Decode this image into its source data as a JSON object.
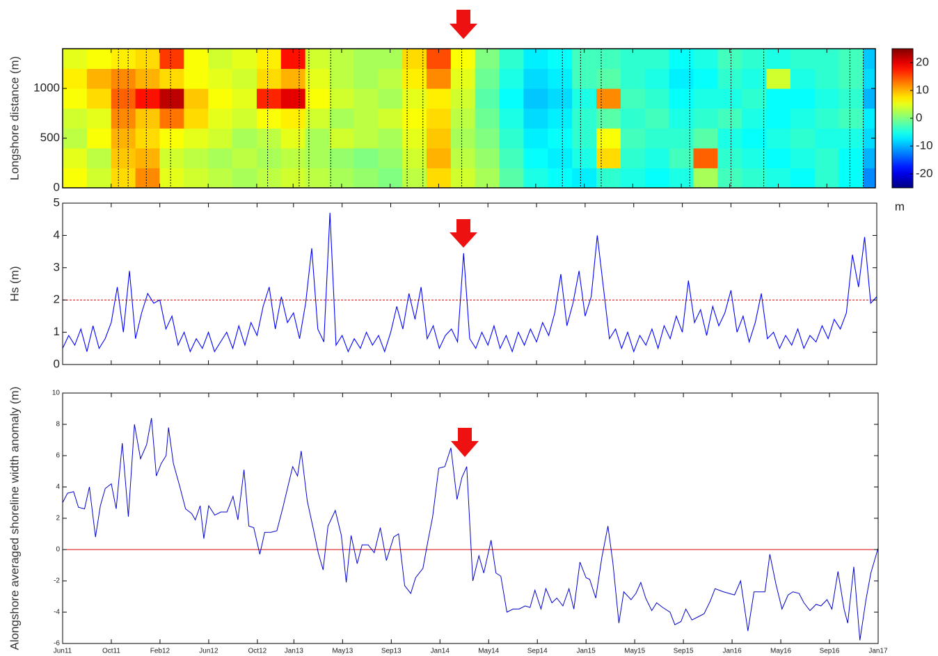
{
  "chart_data": [
    {
      "type": "heatmap",
      "ylabel": "Longshore distance (m)",
      "colormap": "jet",
      "ylim": [
        0,
        1400
      ],
      "yticks": [
        0,
        500,
        1000
      ],
      "clim": [
        -25,
        25
      ],
      "cticks": [
        -20,
        -10,
        0,
        10,
        20
      ],
      "clabel": "m",
      "x_edges": [
        0,
        2,
        4,
        6,
        8,
        10,
        12,
        14,
        16,
        18,
        20,
        22,
        24,
        26,
        28,
        30,
        32,
        34,
        36,
        38,
        40,
        42,
        44,
        46,
        48,
        50,
        52,
        54,
        56,
        58,
        60,
        62,
        64,
        66,
        67
      ],
      "y_edges": [
        0,
        200,
        400,
        600,
        800,
        1000,
        1200,
        1400
      ],
      "z": [
        [
          6,
          4,
          8,
          12,
          5,
          4,
          3,
          2,
          3,
          4,
          3,
          2,
          1,
          0,
          3,
          8,
          4,
          2,
          -2,
          -5,
          -6,
          -7,
          -4,
          -5,
          -6,
          -5,
          2,
          -3,
          -4,
          -5,
          -6,
          -4,
          -6,
          -12
        ],
        [
          5,
          3,
          9,
          10,
          4,
          3,
          2,
          3,
          2,
          3,
          2,
          1,
          0,
          1,
          4,
          10,
          3,
          1,
          -3,
          -6,
          -7,
          -5,
          8,
          -4,
          -5,
          -3,
          14,
          -4,
          -5,
          -6,
          -5,
          -4,
          -6,
          -10
        ],
        [
          3,
          6,
          10,
          8,
          6,
          5,
          4,
          2,
          3,
          5,
          2,
          4,
          3,
          2,
          5,
          9,
          2,
          0,
          -4,
          -7,
          -6,
          -4,
          6,
          -3,
          -4,
          -4,
          -2,
          -5,
          -6,
          -5,
          -4,
          -5,
          -5,
          -8
        ],
        [
          4,
          5,
          12,
          9,
          13,
          8,
          5,
          4,
          6,
          7,
          4,
          2,
          3,
          4,
          6,
          8,
          3,
          -1,
          -5,
          -8,
          -7,
          -4,
          -2,
          -4,
          -3,
          -5,
          -4,
          -3,
          -5,
          -6,
          -5,
          -4,
          -3,
          -7
        ],
        [
          6,
          8,
          14,
          18,
          22,
          9,
          6,
          5,
          17,
          20,
          6,
          4,
          3,
          2,
          5,
          7,
          4,
          -2,
          -6,
          -9,
          -8,
          -5,
          12,
          -3,
          -4,
          -6,
          -5,
          -5,
          -4,
          -6,
          -6,
          -5,
          -4,
          -10
        ],
        [
          7,
          10,
          12,
          10,
          8,
          6,
          5,
          4,
          8,
          10,
          5,
          3,
          2,
          3,
          7,
          12,
          5,
          -1,
          -5,
          -8,
          -7,
          -3,
          -2,
          -4,
          -5,
          -7,
          -6,
          -4,
          -5,
          4,
          -5,
          -4,
          -3,
          -8
        ],
        [
          5,
          6,
          7,
          8,
          16,
          6,
          4,
          5,
          7,
          18,
          4,
          3,
          2,
          2,
          8,
          15,
          6,
          0,
          -4,
          -7,
          -6,
          -3,
          -3,
          -4,
          -4,
          -6,
          -5,
          -3,
          -4,
          -5,
          -4,
          -4,
          -3,
          -9
        ]
      ],
      "storm_events": [
        4.6,
        5.4,
        6.9,
        8.9,
        16.9,
        19.5,
        20.3,
        22.1,
        28.4,
        29.7,
        32.9,
        41.2,
        42.7,
        44.4,
        51.7,
        55.1,
        57.8,
        64.9,
        66.0
      ]
    },
    {
      "type": "line",
      "ylabel": "Hs (m)",
      "color": "#0000ff",
      "threshold": 2,
      "ylim": [
        0,
        5
      ],
      "yticks": [
        0,
        1,
        2,
        3,
        4,
        5
      ],
      "x": [
        0,
        0.5,
        1,
        1.5,
        2,
        2.5,
        3,
        3.5,
        4,
        4.5,
        5,
        5.5,
        6,
        6.5,
        7,
        7.5,
        8,
        8.5,
        9,
        9.5,
        10,
        10.5,
        11,
        11.5,
        12,
        12.5,
        13,
        13.5,
        14,
        14.5,
        15,
        15.5,
        16,
        16.5,
        17,
        17.5,
        18,
        18.5,
        19,
        19.5,
        20,
        20.5,
        21,
        21.5,
        22,
        22.5,
        23,
        23.5,
        24,
        24.5,
        25,
        25.5,
        26,
        26.5,
        27,
        27.5,
        28,
        28.5,
        29,
        29.5,
        30,
        30.5,
        31,
        31.5,
        32,
        32.5,
        33,
        33.5,
        34,
        34.5,
        35,
        35.5,
        36,
        36.5,
        37,
        37.5,
        38,
        38.5,
        39,
        39.5,
        40,
        40.5,
        41,
        41.5,
        42,
        42.5,
        43,
        43.5,
        44,
        44.5,
        45,
        45.5,
        46,
        46.5,
        47,
        47.5,
        48,
        48.5,
        49,
        49.5,
        50,
        50.5,
        51,
        51.5,
        52,
        52.5,
        53,
        53.5,
        54,
        54.5,
        55,
        55.5,
        56,
        56.5,
        57,
        57.5,
        58,
        58.5,
        59,
        59.5,
        60,
        60.5,
        61,
        61.5,
        62,
        62.5,
        63,
        63.5,
        64,
        64.5,
        65,
        65.5,
        66,
        66.5,
        67
      ],
      "values": [
        0.5,
        0.9,
        0.6,
        1.1,
        0.4,
        1.2,
        0.5,
        0.8,
        1.3,
        2.4,
        1.0,
        2.9,
        0.8,
        1.6,
        2.2,
        1.9,
        2.0,
        1.1,
        1.5,
        0.6,
        1.0,
        0.4,
        0.8,
        0.5,
        1.0,
        0.4,
        0.7,
        1.0,
        0.5,
        1.2,
        0.6,
        1.3,
        0.9,
        1.8,
        2.4,
        1.1,
        2.1,
        1.3,
        1.6,
        0.8,
        1.9,
        3.6,
        1.1,
        0.7,
        4.7,
        0.6,
        0.9,
        0.4,
        0.8,
        0.5,
        1.0,
        0.6,
        0.9,
        0.4,
        1.0,
        1.8,
        1.1,
        2.2,
        1.4,
        2.4,
        0.8,
        1.2,
        0.5,
        0.9,
        1.1,
        0.7,
        3.45,
        0.8,
        0.5,
        1.0,
        0.6,
        1.2,
        0.5,
        0.9,
        0.4,
        1.0,
        0.6,
        1.1,
        0.7,
        1.3,
        0.9,
        1.6,
        2.8,
        1.2,
        1.9,
        2.9,
        1.5,
        2.1,
        4.0,
        2.4,
        0.8,
        1.1,
        0.5,
        1.0,
        0.4,
        0.9,
        0.6,
        1.1,
        0.5,
        1.2,
        0.8,
        1.5,
        1.0,
        2.6,
        1.3,
        1.7,
        0.9,
        1.8,
        1.2,
        1.6,
        2.3,
        1.0,
        1.5,
        0.7,
        1.3,
        2.2,
        0.8,
        1.0,
        0.5,
        0.9,
        0.6,
        1.1,
        0.5,
        0.9,
        0.7,
        1.2,
        0.8,
        1.4,
        1.1,
        1.6,
        3.4,
        2.4,
        3.95,
        1.9,
        2.1
      ]
    },
    {
      "type": "line",
      "ylabel": "Alongshore averaged shoreline width anomaly (m)",
      "color": "#0000cc",
      "reference_line": 0,
      "xlim": [
        0,
        67
      ],
      "xticks": [
        {
          "value": 0,
          "label": "Jun11"
        },
        {
          "value": 4,
          "label": "Oct11"
        },
        {
          "value": 8,
          "label": "Feb12"
        },
        {
          "value": 12,
          "label": "Jun12"
        },
        {
          "value": 16,
          "label": "Oct12"
        },
        {
          "value": 19,
          "label": "Jan13"
        },
        {
          "value": 23,
          "label": "May13"
        },
        {
          "value": 27,
          "label": "Sep13"
        },
        {
          "value": 31,
          "label": "Jan14"
        },
        {
          "value": 35,
          "label": "May14"
        },
        {
          "value": 39,
          "label": "Sep14"
        },
        {
          "value": 43,
          "label": "Jan15"
        },
        {
          "value": 47,
          "label": "May15"
        },
        {
          "value": 51,
          "label": "Sep15"
        },
        {
          "value": 55,
          "label": "Jan16"
        },
        {
          "value": 59,
          "label": "May16"
        },
        {
          "value": 63,
          "label": "Sep16"
        },
        {
          "value": 67,
          "label": "Jan17"
        }
      ],
      "ylim": [
        -6,
        10
      ],
      "yticks": [
        -6,
        -4,
        -2,
        0,
        2,
        4,
        6,
        8,
        10
      ],
      "x": [
        0,
        0.4,
        0.9,
        1.3,
        1.8,
        2.2,
        2.7,
        3.1,
        3.5,
        4.0,
        4.4,
        4.9,
        5.4,
        5.9,
        6.4,
        6.9,
        7.3,
        7.7,
        8.1,
        8.5,
        8.7,
        9.1,
        9.6,
        10.1,
        10.6,
        10.9,
        11.3,
        11.6,
        12.0,
        12.5,
        13.0,
        13.5,
        14.0,
        14.4,
        14.9,
        15.3,
        15.7,
        16.2,
        16.6,
        17.1,
        17.6,
        18.1,
        18.5,
        18.9,
        19.3,
        19.6,
        20.1,
        20.6,
        21.0,
        21.4,
        21.8,
        22.4,
        22.9,
        23.3,
        23.7,
        24.2,
        24.6,
        25.1,
        25.6,
        26.1,
        26.6,
        27.2,
        27.6,
        28.1,
        28.6,
        29.0,
        29.6,
        30.0,
        30.4,
        30.9,
        31.4,
        31.9,
        32.4,
        32.8,
        33.2,
        33.7,
        34.2,
        34.6,
        35.2,
        35.6,
        36.0,
        36.5,
        37.0,
        37.5,
        38.0,
        38.4,
        38.8,
        39.3,
        39.7,
        40.2,
        40.6,
        41.1,
        41.6,
        42.0,
        42.5,
        43.0,
        43.3,
        43.8,
        44.3,
        44.8,
        45.2,
        45.7,
        46.1,
        46.7,
        47.1,
        47.5,
        47.9,
        48.4,
        48.8,
        49.3,
        49.9,
        50.3,
        50.8,
        51.2,
        51.7,
        52.2,
        52.7,
        53.2,
        53.6,
        54.3,
        55.2,
        55.7,
        56.3,
        56.8,
        57.3,
        57.7,
        58.1,
        58.6,
        59.1,
        59.6,
        60.0,
        60.5,
        60.9,
        61.4,
        61.9,
        62.3,
        62.8,
        63.2,
        63.7,
        64.2,
        64.5,
        65.0,
        65.5,
        66.0,
        66.4,
        67.0
      ],
      "values": [
        3.0,
        3.6,
        3.7,
        2.7,
        2.6,
        4.0,
        0.8,
        2.8,
        3.9,
        4.2,
        2.6,
        6.8,
        2.1,
        8.0,
        5.8,
        6.7,
        8.4,
        4.7,
        5.5,
        6.0,
        7.8,
        5.5,
        4.1,
        2.6,
        2.3,
        1.9,
        2.8,
        0.7,
        2.8,
        2.2,
        2.4,
        2.4,
        3.4,
        1.9,
        5.1,
        1.5,
        1.4,
        -0.3,
        1.1,
        1.1,
        1.2,
        2.7,
        4.0,
        5.3,
        4.7,
        6.3,
        3.1,
        1.3,
        -0.2,
        -1.3,
        1.5,
        2.5,
        0.9,
        -2.1,
        0.9,
        -0.9,
        0.3,
        0.3,
        -0.2,
        1.4,
        -0.7,
        0.8,
        1.0,
        -2.3,
        -2.8,
        -1.8,
        -1.2,
        0.5,
        2.1,
        5.2,
        5.3,
        6.5,
        3.2,
        4.6,
        5.3,
        -2.0,
        -0.4,
        -1.5,
        0.6,
        -1.5,
        -1.7,
        -4.0,
        -3.8,
        -3.8,
        -3.6,
        -3.7,
        -2.6,
        -3.8,
        -2.5,
        -3.4,
        -3.1,
        -3.6,
        -2.5,
        -3.8,
        -0.8,
        -1.8,
        -1.9,
        -3.1,
        -0.5,
        1.5,
        -0.8,
        -4.7,
        -2.7,
        -3.2,
        -2.8,
        -2.1,
        -3.1,
        -3.9,
        -3.4,
        -3.7,
        -4.0,
        -4.8,
        -4.6,
        -3.8,
        -4.5,
        -4.3,
        -4.1,
        -3.3,
        -2.5,
        -2.7,
        -2.9,
        -2.0,
        -5.2,
        -2.7,
        -2.7,
        -2.7,
        -0.3,
        -2.2,
        -3.8,
        -2.9,
        -2.7,
        -2.8,
        -3.4,
        -3.9,
        -3.5,
        -3.6,
        -3.2,
        -3.8,
        -1.4,
        -3.8,
        -4.7,
        -1.1,
        -5.8,
        -3.2,
        -1.5,
        0.1
      ]
    }
  ]
}
